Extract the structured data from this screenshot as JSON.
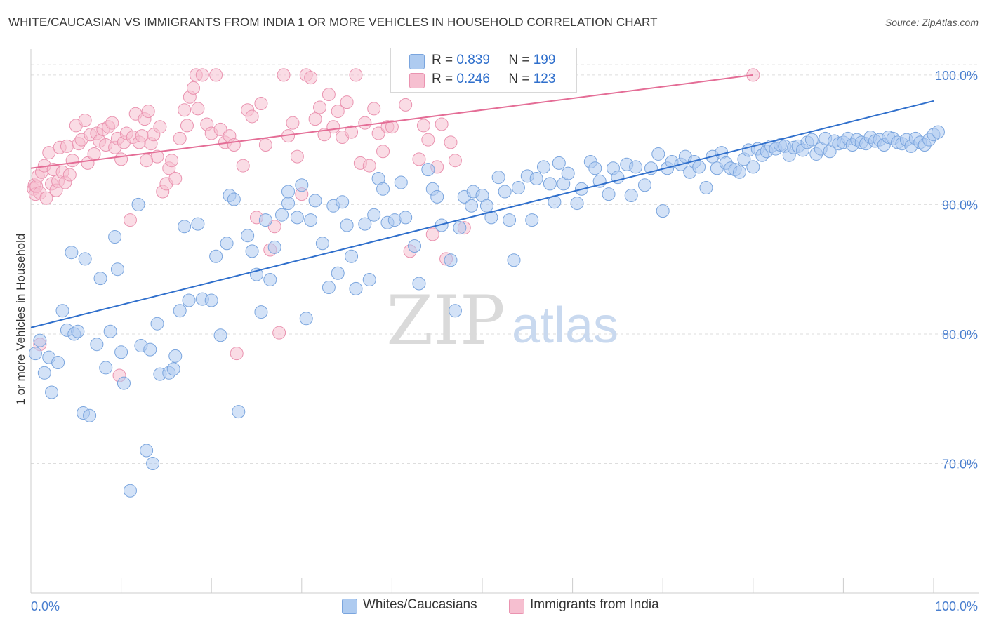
{
  "title": "WHITE/CAUCASIAN VS IMMIGRANTS FROM INDIA 1 OR MORE VEHICLES IN HOUSEHOLD CORRELATION CHART",
  "source": "Source: ZipAtlas.com",
  "watermark": {
    "zip": "ZIP",
    "atlas": "atlas"
  },
  "legend": {
    "r_label": "R =",
    "n_label": "N =",
    "rows": [
      {
        "r": "0.839",
        "n": "199"
      },
      {
        "r": "0.246",
        "n": "123"
      }
    ]
  },
  "colors": {
    "blue_fill": "#aecbf0",
    "blue_stroke": "#7aa5de",
    "blue_line": "#2f6fcc",
    "pink_fill": "#f6bfd0",
    "pink_stroke": "#ea93b0",
    "pink_line": "#e46d96",
    "tick_text": "#4a7fcf",
    "grid": "#dddddd"
  },
  "chart_data": {
    "type": "scatter",
    "xlabel": "",
    "ylabel": "1 or more Vehicles in Household",
    "xlim": [
      0,
      100
    ],
    "ylim": [
      60,
      102
    ],
    "y_ticks": [
      70,
      80,
      90,
      100
    ],
    "y_tick_labels": [
      "70.0%",
      "80.0%",
      "90.0%",
      "100.0%"
    ],
    "x_tick_labels": [
      "0.0%",
      "100.0%"
    ],
    "grid": true,
    "legend_position": "top-center",
    "series": [
      {
        "name": "Whites/Caucasians",
        "r": 0.839,
        "n": 199,
        "trend": [
          [
            0,
            80.5
          ],
          [
            100,
            98.0
          ]
        ],
        "points": [
          [
            0.5,
            78.5
          ],
          [
            1,
            79.5
          ],
          [
            1.5,
            77
          ],
          [
            2,
            78.2
          ],
          [
            2.3,
            75.5
          ],
          [
            3,
            77.8
          ],
          [
            3.5,
            81.8
          ],
          [
            4,
            80.3
          ],
          [
            4.5,
            86.3
          ],
          [
            4.8,
            80.0
          ],
          [
            5.2,
            80.2
          ],
          [
            5.8,
            73.9
          ],
          [
            6,
            85.8
          ],
          [
            6.5,
            73.7
          ],
          [
            7.3,
            79.2
          ],
          [
            7.7,
            84.3
          ],
          [
            8.3,
            77.4
          ],
          [
            8.8,
            80.2
          ],
          [
            9.3,
            87.5
          ],
          [
            9.6,
            85.0
          ],
          [
            10,
            78.6
          ],
          [
            10.3,
            76.2
          ],
          [
            11,
            67.9
          ],
          [
            11.9,
            90.0
          ],
          [
            12.2,
            79.1
          ],
          [
            12.8,
            71.0
          ],
          [
            13.2,
            78.8
          ],
          [
            13.5,
            70.0
          ],
          [
            14,
            80.8
          ],
          [
            14.3,
            76.9
          ],
          [
            15.3,
            77.0
          ],
          [
            15.8,
            77.3
          ],
          [
            16,
            78.3
          ],
          [
            16.5,
            81.8
          ],
          [
            17,
            88.3
          ],
          [
            17.5,
            82.6
          ],
          [
            18.5,
            88.5
          ],
          [
            19,
            82.7
          ],
          [
            20,
            82.6
          ],
          [
            20.5,
            86.0
          ],
          [
            21,
            79.9
          ],
          [
            21.7,
            87.0
          ],
          [
            22,
            90.7
          ],
          [
            22.5,
            90.4
          ],
          [
            23,
            74.0
          ],
          [
            24,
            87.6
          ],
          [
            24.5,
            86.4
          ],
          [
            25,
            84.6
          ],
          [
            25.5,
            81.7
          ],
          [
            26,
            88.8
          ],
          [
            26.5,
            84.2
          ],
          [
            27,
            86.7
          ],
          [
            27.8,
            89.2
          ],
          [
            28.5,
            90.1
          ],
          [
            28.5,
            91.0
          ],
          [
            29.5,
            89.0
          ],
          [
            30,
            91.5
          ],
          [
            30.5,
            81.2
          ],
          [
            31,
            88.8
          ],
          [
            31.5,
            90.3
          ],
          [
            32.3,
            87.0
          ],
          [
            33,
            83.6
          ],
          [
            33.5,
            89.9
          ],
          [
            34,
            84.7
          ],
          [
            34.5,
            90.2
          ],
          [
            35,
            88.4
          ],
          [
            35.5,
            86.0
          ],
          [
            36,
            83.5
          ],
          [
            37,
            88.5
          ],
          [
            37.5,
            84.2
          ],
          [
            38,
            89.2
          ],
          [
            38.5,
            92.0
          ],
          [
            39,
            91.2
          ],
          [
            39.5,
            88.6
          ],
          [
            40.3,
            88.8
          ],
          [
            41,
            91.7
          ],
          [
            41.5,
            89.0
          ],
          [
            42.5,
            86.8
          ],
          [
            43,
            83.9
          ],
          [
            44,
            92.7
          ],
          [
            44.5,
            91.2
          ],
          [
            45,
            90.6
          ],
          [
            45.5,
            88.4
          ],
          [
            46.5,
            85.7
          ],
          [
            47,
            81.8
          ],
          [
            47.5,
            88.2
          ],
          [
            48,
            90.6
          ],
          [
            48.8,
            89.9
          ],
          [
            49,
            91.0
          ],
          [
            50,
            90.7
          ],
          [
            50.5,
            89.9
          ],
          [
            51,
            89.0
          ],
          [
            51.8,
            92.1
          ],
          [
            52.5,
            91.0
          ],
          [
            53,
            88.8
          ],
          [
            53.5,
            85.7
          ],
          [
            54,
            91.3
          ],
          [
            55,
            92.2
          ],
          [
            55.5,
            88.8
          ],
          [
            56,
            92.0
          ],
          [
            56.8,
            92.9
          ],
          [
            57.5,
            91.6
          ],
          [
            58,
            90.2
          ],
          [
            58.5,
            93.2
          ],
          [
            59,
            91.6
          ],
          [
            59.5,
            92.4
          ],
          [
            60.5,
            90.1
          ],
          [
            61,
            91.2
          ],
          [
            62,
            93.3
          ],
          [
            62.5,
            92.8
          ],
          [
            63,
            91.8
          ],
          [
            64,
            90.8
          ],
          [
            64.5,
            92.8
          ],
          [
            65,
            92.1
          ],
          [
            66,
            93.1
          ],
          [
            66.5,
            90.7
          ],
          [
            67,
            92.9
          ],
          [
            68,
            91.5
          ],
          [
            68.7,
            92.8
          ],
          [
            69.5,
            93.9
          ],
          [
            70,
            89.5
          ],
          [
            70.5,
            92.8
          ],
          [
            71,
            93.3
          ],
          [
            72,
            93.1
          ],
          [
            72.5,
            93.7
          ],
          [
            73,
            92.5
          ],
          [
            73.5,
            93.3
          ],
          [
            74,
            92.9
          ],
          [
            74.8,
            91.3
          ],
          [
            75.5,
            93.7
          ],
          [
            76,
            92.8
          ],
          [
            76.5,
            94.0
          ],
          [
            77,
            93.2
          ],
          [
            77.5,
            92.8
          ],
          [
            78,
            92.7
          ],
          [
            78.5,
            92.5
          ],
          [
            79,
            93.5
          ],
          [
            79.5,
            94.2
          ],
          [
            80,
            92.9
          ],
          [
            80.5,
            94.3
          ],
          [
            81,
            93.8
          ],
          [
            81.5,
            94.1
          ],
          [
            82,
            94.5
          ],
          [
            82.5,
            94.3
          ],
          [
            83,
            94.6
          ],
          [
            83.5,
            94.5
          ],
          [
            84,
            93.8
          ],
          [
            84.5,
            94.4
          ],
          [
            85,
            94.5
          ],
          [
            85.5,
            94.2
          ],
          [
            86,
            94.8
          ],
          [
            86.5,
            95.0
          ],
          [
            87,
            93.9
          ],
          [
            87.5,
            94.3
          ],
          [
            88,
            95.1
          ],
          [
            88.5,
            94.1
          ],
          [
            89,
            94.9
          ],
          [
            89.5,
            94.7
          ],
          [
            90,
            94.8
          ],
          [
            90.5,
            95.1
          ],
          [
            91,
            94.6
          ],
          [
            91.5,
            95.0
          ],
          [
            92,
            94.8
          ],
          [
            92.5,
            94.7
          ],
          [
            93,
            95.2
          ],
          [
            93.5,
            94.9
          ],
          [
            94,
            95.0
          ],
          [
            94.5,
            94.6
          ],
          [
            95,
            95.2
          ],
          [
            95.5,
            95.1
          ],
          [
            96,
            94.8
          ],
          [
            96.5,
            94.7
          ],
          [
            97,
            95.0
          ],
          [
            97.5,
            94.5
          ],
          [
            98,
            95.1
          ],
          [
            98.5,
            94.8
          ],
          [
            99,
            94.6
          ],
          [
            99.5,
            95.0
          ],
          [
            100,
            95.4
          ],
          [
            100.5,
            95.6
          ]
        ]
      },
      {
        "name": "Immigrants from India",
        "r": 0.246,
        "n": 123,
        "trend": [
          [
            0,
            92.8
          ],
          [
            80,
            100.0
          ]
        ],
        "points": [
          [
            0.3,
            91.2
          ],
          [
            0.4,
            91.5
          ],
          [
            0.5,
            90.8
          ],
          [
            0.6,
            91.4
          ],
          [
            0.8,
            92.2
          ],
          [
            1,
            90.9
          ],
          [
            1,
            79.2
          ],
          [
            1.2,
            92.5
          ],
          [
            1.5,
            93.0
          ],
          [
            1.7,
            90.5
          ],
          [
            2,
            94.0
          ],
          [
            2.3,
            91.6
          ],
          [
            2.5,
            92.7
          ],
          [
            2.8,
            91.1
          ],
          [
            3,
            91.8
          ],
          [
            3.2,
            94.4
          ],
          [
            3.5,
            92.5
          ],
          [
            3.8,
            91.7
          ],
          [
            4,
            94.5
          ],
          [
            4.3,
            92.3
          ],
          [
            4.6,
            93.4
          ],
          [
            5,
            96.1
          ],
          [
            5.3,
            94.7
          ],
          [
            5.6,
            95.0
          ],
          [
            6,
            96.5
          ],
          [
            6.3,
            93.2
          ],
          [
            6.6,
            95.4
          ],
          [
            7,
            93.9
          ],
          [
            7.3,
            95.5
          ],
          [
            7.6,
            94.9
          ],
          [
            8,
            95.8
          ],
          [
            8.3,
            94.6
          ],
          [
            8.6,
            96.0
          ],
          [
            9,
            96.3
          ],
          [
            9.3,
            94.4
          ],
          [
            9.6,
            95.1
          ],
          [
            10,
            93.5
          ],
          [
            10.3,
            94.8
          ],
          [
            10.6,
            95.5
          ],
          [
            11,
            88.8
          ],
          [
            11.3,
            95.2
          ],
          [
            11.6,
            97.0
          ],
          [
            12,
            94.8
          ],
          [
            12.3,
            95.3
          ],
          [
            12.6,
            96.6
          ],
          [
            13,
            97.2
          ],
          [
            13.3,
            94.7
          ],
          [
            13.6,
            95.4
          ],
          [
            14,
            93.7
          ],
          [
            14.3,
            96.0
          ],
          [
            14.6,
            91.0
          ],
          [
            15,
            91.6
          ],
          [
            15.3,
            92.8
          ],
          [
            15.6,
            93.4
          ],
          [
            16,
            92.0
          ],
          [
            16.5,
            95.1
          ],
          [
            17,
            97.3
          ],
          [
            17.3,
            96.1
          ],
          [
            17.6,
            98.3
          ],
          [
            18,
            99.0
          ],
          [
            18.3,
            100.0
          ],
          [
            18.5,
            97.4
          ],
          [
            19,
            100.0
          ],
          [
            19.5,
            96.2
          ],
          [
            20,
            95.5
          ],
          [
            20.5,
            100.0
          ],
          [
            21,
            95.8
          ],
          [
            21.5,
            94.8
          ],
          [
            22,
            95.3
          ],
          [
            22.5,
            94.6
          ],
          [
            22.8,
            78.5
          ],
          [
            23.5,
            93.0
          ],
          [
            24,
            97.3
          ],
          [
            24.5,
            96.8
          ],
          [
            25,
            89.0
          ],
          [
            25.5,
            97.8
          ],
          [
            26,
            94.6
          ],
          [
            26.5,
            86.5
          ],
          [
            27,
            88.3
          ],
          [
            27.5,
            80.1
          ],
          [
            28,
            100.0
          ],
          [
            28.5,
            95.3
          ],
          [
            29,
            96.3
          ],
          [
            29.5,
            93.7
          ],
          [
            30,
            90.8
          ],
          [
            30.5,
            100.0
          ],
          [
            31,
            99.8
          ],
          [
            31.5,
            96.6
          ],
          [
            32,
            97.5
          ],
          [
            32.5,
            95.4
          ],
          [
            33,
            98.5
          ],
          [
            33.5,
            96.0
          ],
          [
            34,
            97.2
          ],
          [
            34.5,
            95.2
          ],
          [
            35,
            97.9
          ],
          [
            35.5,
            95.6
          ],
          [
            36,
            100.0
          ],
          [
            36.5,
            93.2
          ],
          [
            37,
            96.3
          ],
          [
            37.5,
            93.0
          ],
          [
            38,
            97.4
          ],
          [
            38.5,
            95.5
          ],
          [
            39,
            94.1
          ],
          [
            39.5,
            96.0
          ],
          [
            40,
            96.0
          ],
          [
            40.5,
            100.0
          ],
          [
            41,
            100.0
          ],
          [
            41.5,
            97.7
          ],
          [
            42,
            86.4
          ],
          [
            42.5,
            99.5
          ],
          [
            43,
            93.5
          ],
          [
            43.5,
            96.1
          ],
          [
            44,
            95.0
          ],
          [
            44.5,
            87.7
          ],
          [
            45,
            92.9
          ],
          [
            45.5,
            96.2
          ],
          [
            46,
            85.8
          ],
          [
            46.5,
            94.8
          ],
          [
            47,
            93.4
          ],
          [
            48,
            88.2
          ],
          [
            80,
            100.0
          ],
          [
            12.8,
            93.4
          ],
          [
            9.8,
            76.8
          ]
        ]
      }
    ]
  }
}
